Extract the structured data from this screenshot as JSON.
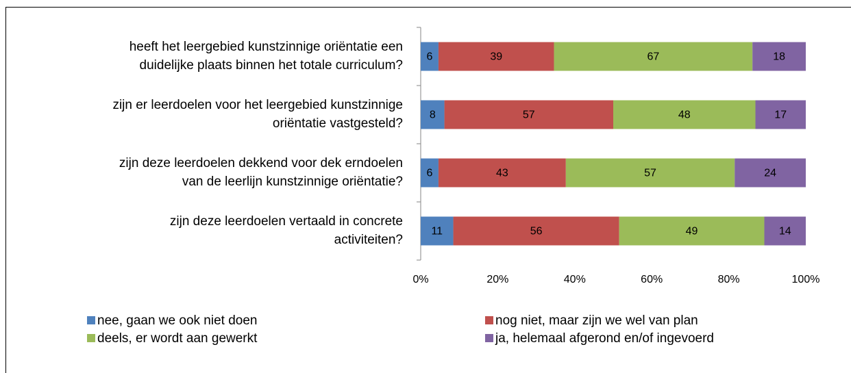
{
  "chart_data": {
    "type": "bar",
    "orientation": "horizontal",
    "stacking": "percent",
    "categories": [
      [
        "heeft het leergebied kunstzinnige oriëntatie een",
        "duidelijke plaats binnen het totale curriculum?"
      ],
      [
        "zijn er leerdoelen voor het leergebied kunstzinnige",
        "oriëntatie vastgesteld?"
      ],
      [
        "zijn deze leerdoelen dekkend voor dek erndoelen",
        "van de leerlijn kunstzinnige oriëntatie?"
      ],
      [
        "zijn deze leerdoelen vertaald in concrete",
        "activiteiten?"
      ]
    ],
    "series": [
      {
        "name": "nee, gaan we ook niet doen",
        "color": "#4f81bd",
        "values": [
          6,
          8,
          6,
          11
        ]
      },
      {
        "name": "nog niet, maar zijn we wel van plan",
        "color": "#c0504d",
        "values": [
          39,
          57,
          43,
          56
        ]
      },
      {
        "name": "deels, er wordt aan gewerkt",
        "color": "#9bbb59",
        "values": [
          67,
          48,
          57,
          49
        ]
      },
      {
        "name": "ja, helemaal afgerond en/of ingevoerd",
        "color": "#8064a2",
        "values": [
          18,
          17,
          24,
          14
        ]
      }
    ],
    "xlim": [
      0,
      100
    ],
    "xticks": [
      {
        "value": 0,
        "label": "0%"
      },
      {
        "value": 20,
        "label": "20%"
      },
      {
        "value": 40,
        "label": "40%"
      },
      {
        "value": 60,
        "label": "60%"
      },
      {
        "value": 80,
        "label": "80%"
      },
      {
        "value": 100,
        "label": "100%"
      }
    ],
    "legend": "bottom"
  }
}
